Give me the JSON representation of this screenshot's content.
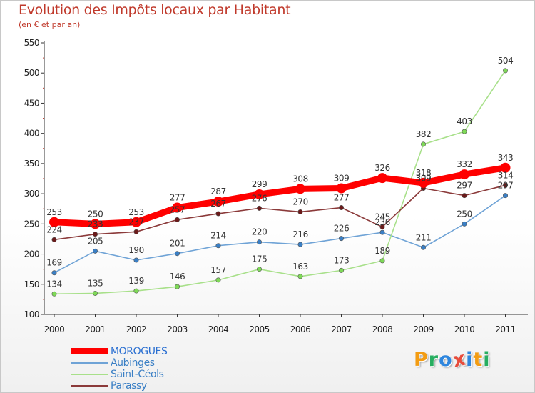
{
  "chart_data": {
    "type": "line",
    "title": "Evolution des Impôts locaux par Habitant",
    "subtitle": "(en € et par an)",
    "xlabel": "",
    "ylabel": "",
    "x": [
      "2000",
      "2001",
      "2002",
      "2003",
      "2004",
      "2005",
      "2006",
      "2007",
      "2008",
      "2009",
      "2010",
      "2011"
    ],
    "ylim": [
      100,
      550
    ],
    "yticks": [
      "100",
      "150",
      "200",
      "250",
      "300",
      "350",
      "400",
      "450",
      "500",
      "550"
    ],
    "grid": false,
    "legend_position": "bottom-left",
    "series": [
      {
        "name": "MOROGUES",
        "color": "#ff0000",
        "marker_color": "#ff0000",
        "values": [
          253,
          250,
          253,
          277,
          287,
          299,
          308,
          309,
          326,
          318,
          332,
          343
        ]
      },
      {
        "name": "Aubinges",
        "color": "#6fa3d6",
        "marker_color": "#3a7fc5",
        "values": [
          169,
          205,
          190,
          201,
          214,
          220,
          216,
          226,
          236,
          211,
          250,
          297
        ]
      },
      {
        "name": "Saint-Céols",
        "color": "#a8e08a",
        "marker_color": "#7ed957",
        "values": [
          134,
          135,
          139,
          146,
          157,
          175,
          163,
          173,
          189,
          382,
          403,
          504
        ]
      },
      {
        "name": "Parassy",
        "color": "#8b3a3a",
        "marker_color": "#6b1a1a",
        "values": [
          224,
          233,
          237,
          257,
          267,
          276,
          270,
          277,
          245,
          309,
          297,
          314
        ]
      }
    ],
    "data_labels": [
      [
        "253",
        "250",
        "253",
        "277",
        "287",
        "299",
        "308",
        "309",
        "326",
        "318",
        "332",
        "343"
      ],
      [
        "169",
        "205",
        "190",
        "201",
        "214",
        "220",
        "216",
        "226",
        "236",
        "211",
        "250",
        "297"
      ],
      [
        "134",
        "135",
        "139",
        "146",
        "157",
        "175",
        "163",
        "173",
        "189",
        "382",
        "403",
        "504"
      ],
      [
        "224",
        "233",
        "237",
        "257",
        "267",
        "276",
        "270",
        "277",
        "245",
        "309",
        "297",
        "314"
      ]
    ]
  },
  "logo": {
    "letters": [
      "P",
      "r",
      "o",
      "x",
      "i",
      "t",
      "i"
    ],
    "colors": [
      "#f39c12",
      "#27ae60",
      "#2e86de",
      "#e74c3c",
      "#2e86de",
      "#f39c12",
      "#27ae60"
    ]
  }
}
